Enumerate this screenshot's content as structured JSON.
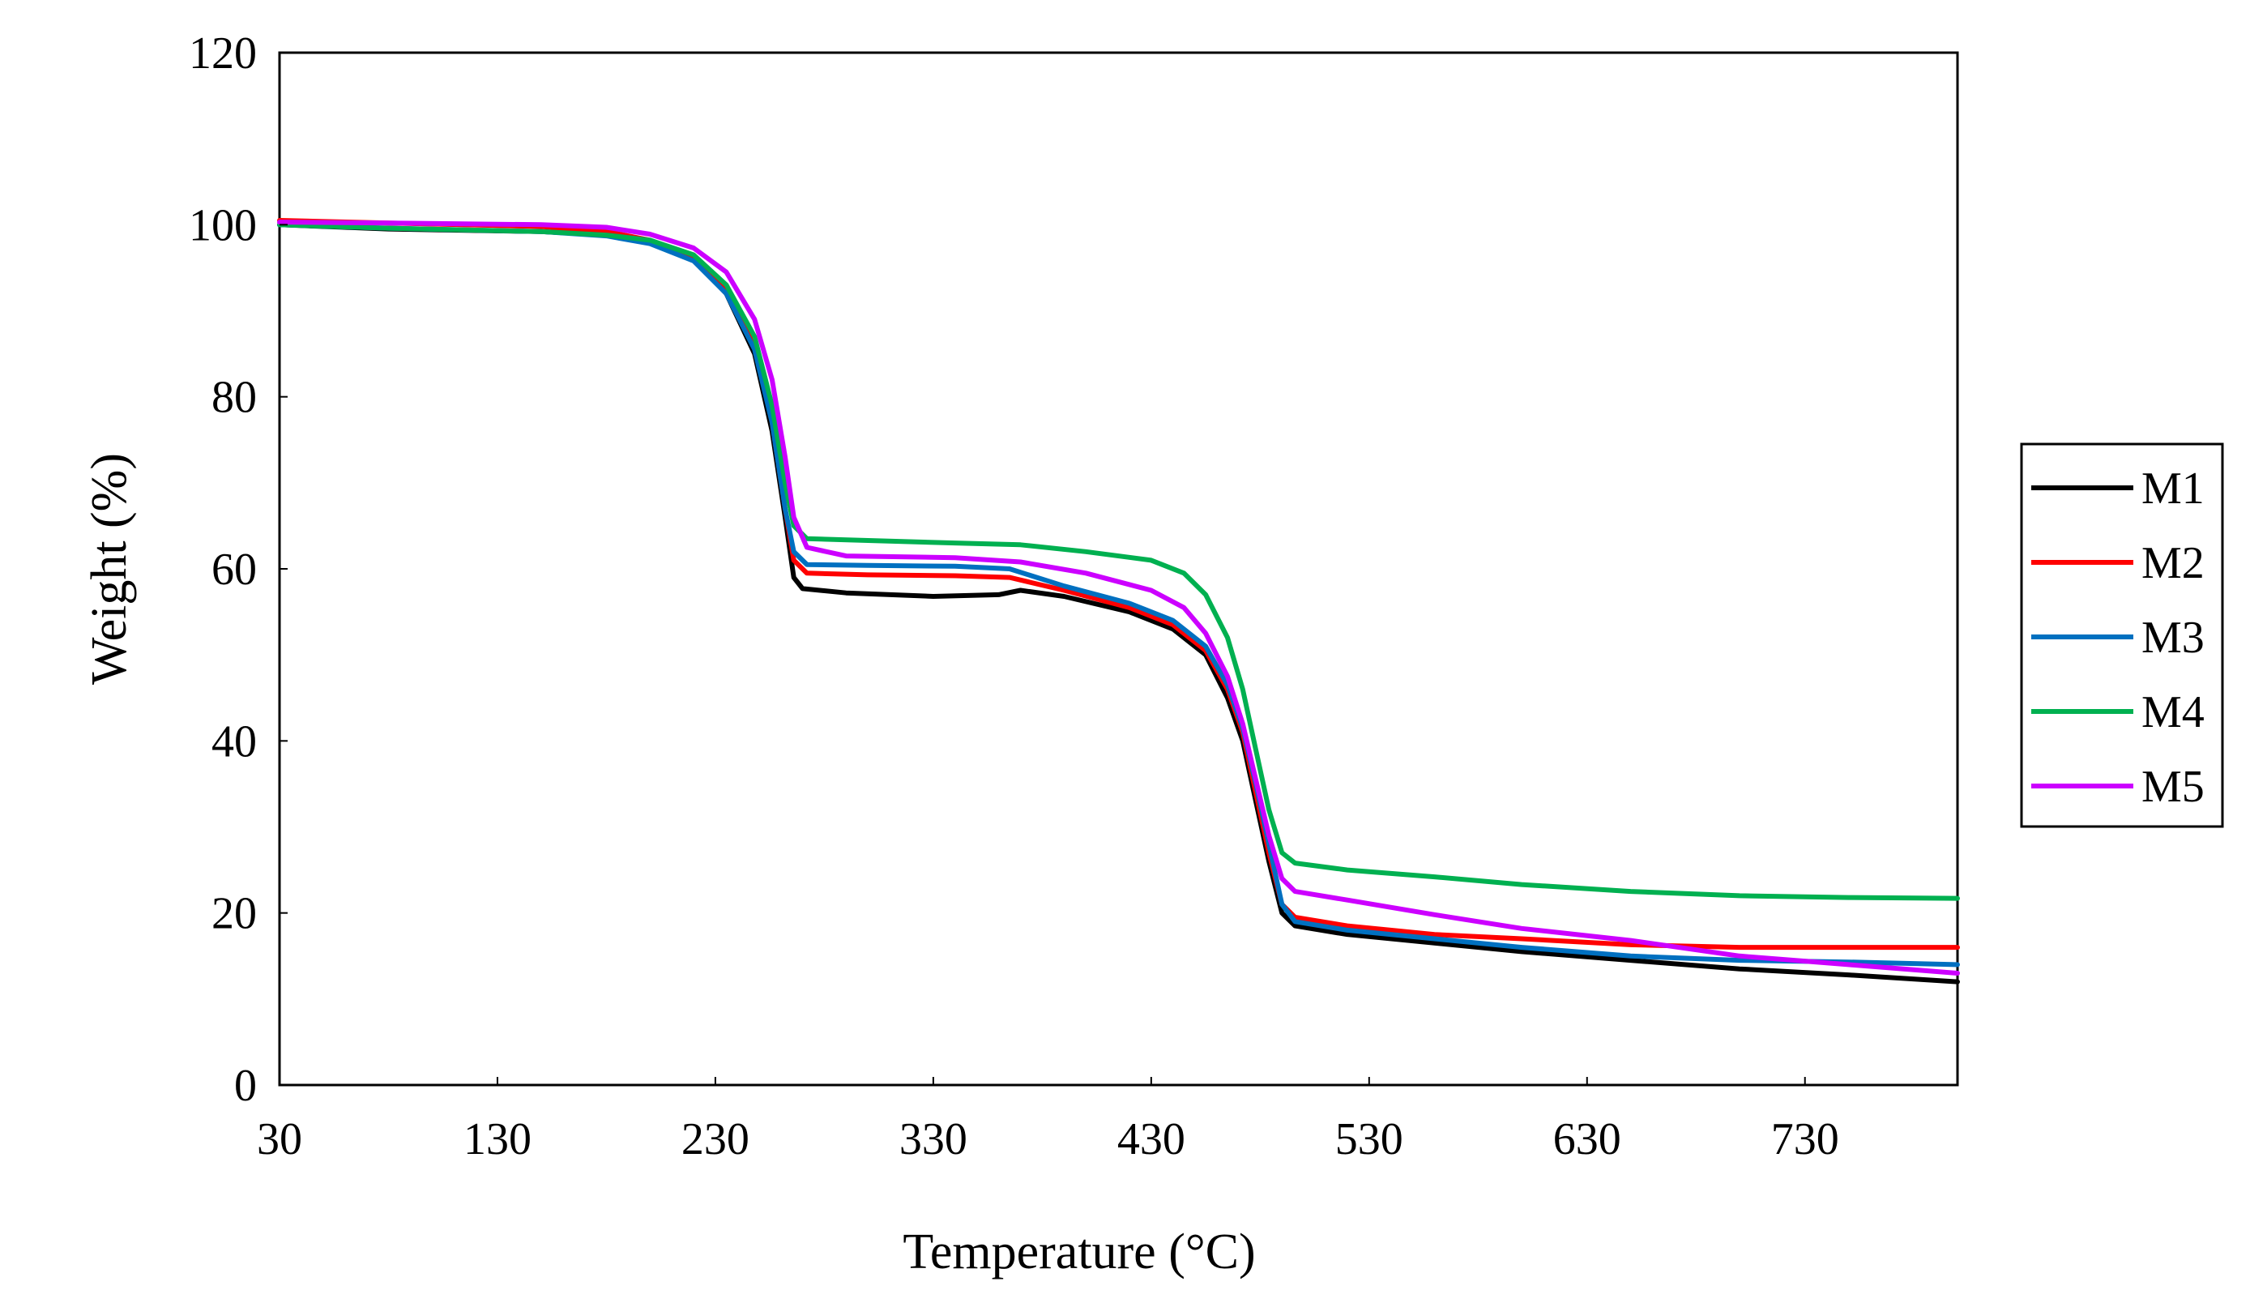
{
  "chart_data": {
    "type": "line",
    "title": "",
    "xlabel": "Temperature (°C)",
    "ylabel": "Weight (%)",
    "xlim": [
      30,
      800
    ],
    "ylim": [
      0,
      120
    ],
    "x_ticks": [
      30,
      130,
      230,
      330,
      430,
      530,
      630,
      730
    ],
    "y_ticks": [
      0,
      20,
      40,
      60,
      80,
      100,
      120
    ],
    "x_tick_labels": [
      "30",
      "130",
      "230",
      "330",
      "430",
      "530",
      "630",
      "730"
    ],
    "y_tick_labels": [
      "0",
      "20",
      "40",
      "60",
      "80",
      "100",
      "120"
    ],
    "grid": false,
    "legend_position": "right",
    "series": [
      {
        "name": "M1",
        "color": "#000000",
        "points": [
          [
            30,
            100
          ],
          [
            80,
            99.5
          ],
          [
            150,
            99.2
          ],
          [
            180,
            98.8
          ],
          [
            200,
            98
          ],
          [
            220,
            96
          ],
          [
            235,
            92
          ],
          [
            248,
            85
          ],
          [
            256,
            76
          ],
          [
            262,
            66
          ],
          [
            266,
            59
          ],
          [
            270,
            57.7
          ],
          [
            290,
            57.2
          ],
          [
            330,
            56.8
          ],
          [
            360,
            57
          ],
          [
            370,
            57.5
          ],
          [
            390,
            56.8
          ],
          [
            420,
            55
          ],
          [
            440,
            53
          ],
          [
            455,
            50
          ],
          [
            465,
            45
          ],
          [
            472,
            40
          ],
          [
            478,
            33
          ],
          [
            484,
            26
          ],
          [
            490,
            20
          ],
          [
            496,
            18.5
          ],
          [
            520,
            17.5
          ],
          [
            560,
            16.5
          ],
          [
            600,
            15.5
          ],
          [
            650,
            14.5
          ],
          [
            700,
            13.5
          ],
          [
            750,
            12.8
          ],
          [
            800,
            12
          ]
        ]
      },
      {
        "name": "M2",
        "color": "#ff0000",
        "points": [
          [
            30,
            100.5
          ],
          [
            80,
            100.2
          ],
          [
            150,
            99.8
          ],
          [
            180,
            99.2
          ],
          [
            200,
            98.2
          ],
          [
            220,
            96.2
          ],
          [
            235,
            92.5
          ],
          [
            248,
            86
          ],
          [
            256,
            77
          ],
          [
            262,
            67
          ],
          [
            266,
            61
          ],
          [
            272,
            59.5
          ],
          [
            300,
            59.3
          ],
          [
            340,
            59.2
          ],
          [
            365,
            59
          ],
          [
            390,
            57.5
          ],
          [
            420,
            55.5
          ],
          [
            440,
            53.5
          ],
          [
            455,
            50.5
          ],
          [
            465,
            46
          ],
          [
            472,
            41
          ],
          [
            478,
            34
          ],
          [
            484,
            27
          ],
          [
            490,
            21
          ],
          [
            496,
            19.5
          ],
          [
            520,
            18.5
          ],
          [
            560,
            17.5
          ],
          [
            600,
            17
          ],
          [
            650,
            16.3
          ],
          [
            700,
            16
          ],
          [
            750,
            16
          ],
          [
            800,
            16
          ]
        ]
      },
      {
        "name": "M3",
        "color": "#0070c0",
        "points": [
          [
            30,
            100
          ],
          [
            80,
            99.6
          ],
          [
            150,
            99.2
          ],
          [
            180,
            98.7
          ],
          [
            200,
            97.8
          ],
          [
            220,
            95.8
          ],
          [
            235,
            92
          ],
          [
            248,
            85.5
          ],
          [
            256,
            77
          ],
          [
            262,
            67
          ],
          [
            266,
            62
          ],
          [
            272,
            60.5
          ],
          [
            300,
            60.4
          ],
          [
            340,
            60.3
          ],
          [
            365,
            60
          ],
          [
            390,
            58
          ],
          [
            420,
            56
          ],
          [
            440,
            54
          ],
          [
            455,
            51
          ],
          [
            465,
            46.5
          ],
          [
            472,
            41.5
          ],
          [
            478,
            35
          ],
          [
            484,
            28
          ],
          [
            490,
            21
          ],
          [
            496,
            19
          ],
          [
            520,
            18
          ],
          [
            560,
            17
          ],
          [
            600,
            16
          ],
          [
            650,
            15
          ],
          [
            700,
            14.5
          ],
          [
            750,
            14.3
          ],
          [
            800,
            14
          ]
        ]
      },
      {
        "name": "M4",
        "color": "#00b050",
        "points": [
          [
            30,
            100
          ],
          [
            80,
            99.6
          ],
          [
            150,
            99.2
          ],
          [
            180,
            98.8
          ],
          [
            200,
            98.2
          ],
          [
            220,
            96.5
          ],
          [
            235,
            93
          ],
          [
            248,
            87
          ],
          [
            256,
            79
          ],
          [
            262,
            70
          ],
          [
            266,
            65
          ],
          [
            272,
            63.5
          ],
          [
            300,
            63.3
          ],
          [
            340,
            63
          ],
          [
            370,
            62.8
          ],
          [
            400,
            62
          ],
          [
            430,
            61
          ],
          [
            445,
            59.5
          ],
          [
            455,
            57
          ],
          [
            465,
            52
          ],
          [
            472,
            46
          ],
          [
            478,
            39
          ],
          [
            484,
            32
          ],
          [
            490,
            27
          ],
          [
            496,
            25.8
          ],
          [
            520,
            25
          ],
          [
            560,
            24.2
          ],
          [
            600,
            23.3
          ],
          [
            650,
            22.5
          ],
          [
            700,
            22
          ],
          [
            750,
            21.8
          ],
          [
            800,
            21.7
          ]
        ]
      },
      {
        "name": "M5",
        "color": "#cc00ff",
        "points": [
          [
            30,
            100.3
          ],
          [
            80,
            100.2
          ],
          [
            150,
            100
          ],
          [
            180,
            99.7
          ],
          [
            200,
            98.9
          ],
          [
            220,
            97.3
          ],
          [
            235,
            94.5
          ],
          [
            248,
            89
          ],
          [
            256,
            82
          ],
          [
            262,
            73
          ],
          [
            266,
            66
          ],
          [
            272,
            62.5
          ],
          [
            290,
            61.5
          ],
          [
            340,
            61.3
          ],
          [
            370,
            60.8
          ],
          [
            400,
            59.5
          ],
          [
            430,
            57.5
          ],
          [
            445,
            55.5
          ],
          [
            455,
            52.5
          ],
          [
            465,
            47.5
          ],
          [
            472,
            42
          ],
          [
            478,
            35.5
          ],
          [
            484,
            29
          ],
          [
            490,
            24
          ],
          [
            496,
            22.5
          ],
          [
            520,
            21.5
          ],
          [
            560,
            19.8
          ],
          [
            600,
            18.2
          ],
          [
            650,
            16.8
          ],
          [
            700,
            15
          ],
          [
            750,
            14
          ],
          [
            800,
            13
          ]
        ]
      }
    ]
  }
}
